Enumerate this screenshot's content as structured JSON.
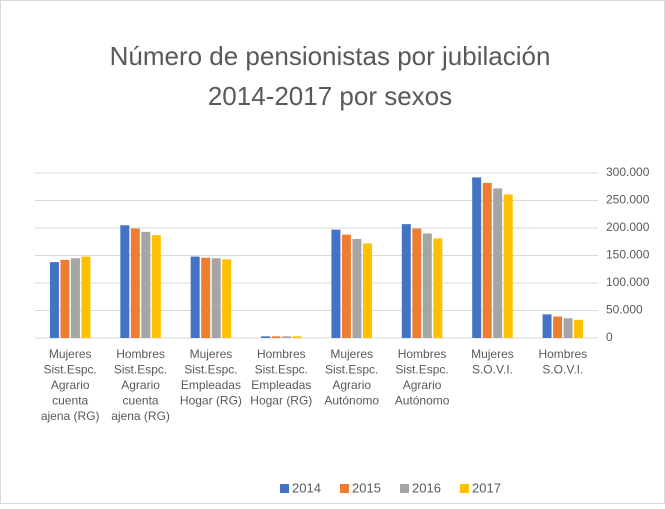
{
  "chart_data": {
    "type": "bar",
    "title": [
      "Número de pensionistas por jubilación",
      "2014-2017 por sexos"
    ],
    "categories": [
      [
        "Mujeres",
        "Sist.Espc.",
        "Agrario",
        "cuenta",
        "ajena (RG)"
      ],
      [
        "Hombres",
        "Sist.Espc.",
        "Agrario",
        "cuenta",
        "ajena (RG)"
      ],
      [
        "Mujeres",
        "Sist.Espc.",
        "Empleadas",
        "Hogar (RG)"
      ],
      [
        "Hombres",
        "Sist.Espc.",
        "Empleadas",
        "Hogar (RG)"
      ],
      [
        "Mujeres",
        "Sist.Espc.",
        "Agrario",
        "Autónomo"
      ],
      [
        "Hombres",
        "Sist.Espc.",
        "Agrario",
        "Autónomo"
      ],
      [
        "Mujeres",
        "S.O.V.I."
      ],
      [
        "Hombres",
        "S.O.V.I."
      ]
    ],
    "series": [
      {
        "name": "2014",
        "color": "#4472c4",
        "values": [
          138000,
          205000,
          148000,
          3000,
          197000,
          207000,
          292000,
          43000
        ]
      },
      {
        "name": "2015",
        "color": "#ed7d31",
        "values": [
          142000,
          199000,
          146000,
          3000,
          188000,
          199000,
          282000,
          39000
        ]
      },
      {
        "name": "2016",
        "color": "#a5a5a5",
        "values": [
          145000,
          193000,
          145000,
          3000,
          180000,
          190000,
          272000,
          36000
        ]
      },
      {
        "name": "2017",
        "color": "#ffc000",
        "values": [
          148000,
          187000,
          143000,
          3000,
          172000,
          181000,
          261000,
          33000
        ]
      }
    ],
    "ylim": [
      0,
      300000
    ],
    "yticks": [
      0,
      {
        "value": 50000,
        "label": "50.000"
      },
      {
        "value": 100000,
        "label": "100.000"
      },
      {
        "value": 150000,
        "label": "150.000"
      },
      {
        "value": 200000,
        "label": "200.000"
      },
      {
        "value": 250000,
        "label": "250.000"
      },
      {
        "value": 300000,
        "label": "300.000"
      }
    ],
    "grid": true,
    "legend": "bottom"
  }
}
